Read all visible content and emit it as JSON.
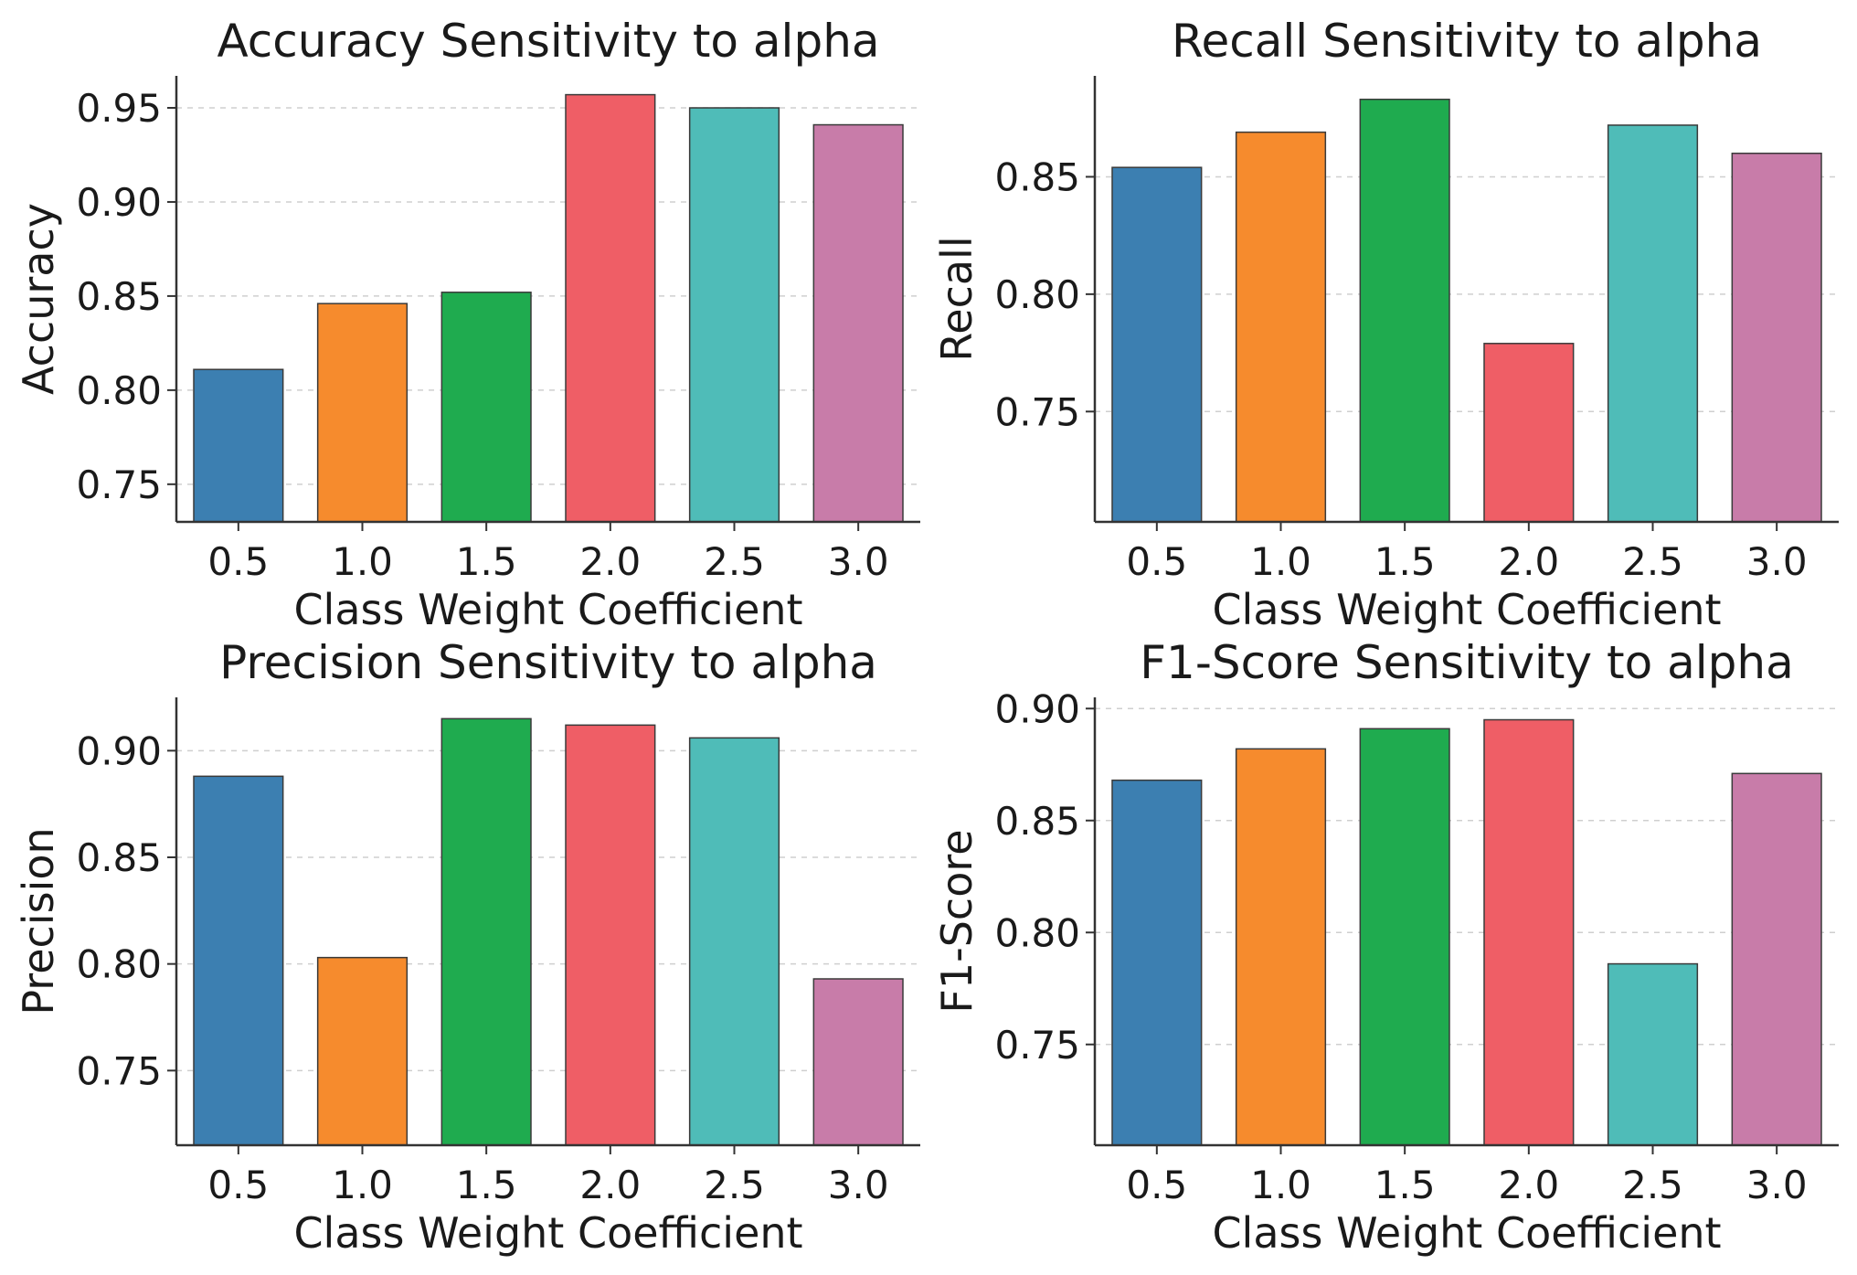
{
  "chart_data": [
    {
      "type": "bar",
      "title": "Accuracy Sensitivity to alpha",
      "xlabel": "Class Weight Coefficient",
      "ylabel": "Accuracy",
      "categories": [
        "0.5",
        "1.0",
        "1.5",
        "2.0",
        "2.5",
        "3.0"
      ],
      "values": [
        0.811,
        0.846,
        0.852,
        0.957,
        0.95,
        0.941
      ],
      "ylim": [
        0.73,
        0.967
      ],
      "yticks": [
        "0.75",
        "0.80",
        "0.85",
        "0.90",
        "0.95"
      ],
      "colors": [
        "#3c7fb1",
        "#f68b2d",
        "#1fab4f",
        "#ef5e66",
        "#4fbcb8",
        "#c87ca9"
      ],
      "grid": true
    },
    {
      "type": "bar",
      "title": "Recall Sensitivity to alpha",
      "xlabel": "Class Weight Coefficient",
      "ylabel": "Recall",
      "categories": [
        "0.5",
        "1.0",
        "1.5",
        "2.0",
        "2.5",
        "3.0"
      ],
      "values": [
        0.854,
        0.869,
        0.883,
        0.779,
        0.872,
        0.86
      ],
      "ylim": [
        0.703,
        0.893
      ],
      "yticks": [
        "0.75",
        "0.80",
        "0.85"
      ],
      "colors": [
        "#3c7fb1",
        "#f68b2d",
        "#1fab4f",
        "#ef5e66",
        "#4fbcb8",
        "#c87ca9"
      ],
      "grid": true
    },
    {
      "type": "bar",
      "title": "Precision Sensitivity to alpha",
      "xlabel": "Class Weight Coefficient",
      "ylabel": "Precision",
      "categories": [
        "0.5",
        "1.0",
        "1.5",
        "2.0",
        "2.5",
        "3.0"
      ],
      "values": [
        0.888,
        0.803,
        0.915,
        0.912,
        0.906,
        0.793
      ],
      "ylim": [
        0.715,
        0.925
      ],
      "yticks": [
        "0.75",
        "0.80",
        "0.85",
        "0.90"
      ],
      "colors": [
        "#3c7fb1",
        "#f68b2d",
        "#1fab4f",
        "#ef5e66",
        "#4fbcb8",
        "#c87ca9"
      ],
      "grid": true
    },
    {
      "type": "bar",
      "title": "F1-Score Sensitivity to alpha",
      "xlabel": "Class Weight Coefficient",
      "ylabel": "F1-Score",
      "categories": [
        "0.5",
        "1.0",
        "1.5",
        "2.0",
        "2.5",
        "3.0"
      ],
      "values": [
        0.868,
        0.882,
        0.891,
        0.895,
        0.786,
        0.871
      ],
      "ylim": [
        0.705,
        0.905
      ],
      "yticks": [
        "0.75",
        "0.80",
        "0.85",
        "0.90"
      ],
      "colors": [
        "#3c7fb1",
        "#f68b2d",
        "#1fab4f",
        "#ef5e66",
        "#4fbcb8",
        "#c87ca9"
      ],
      "grid": true
    }
  ]
}
